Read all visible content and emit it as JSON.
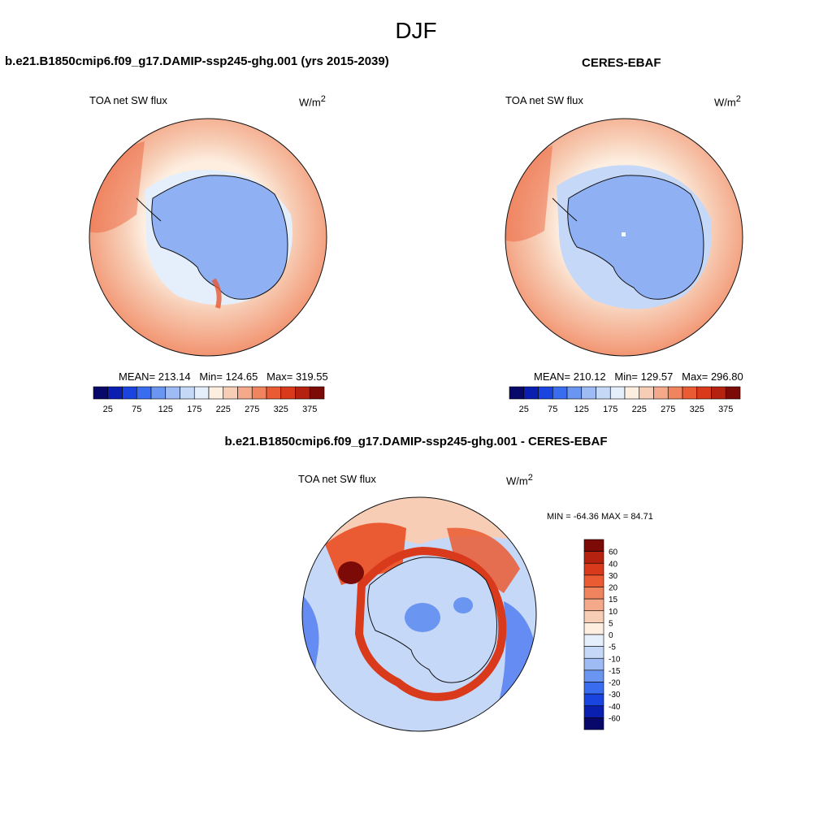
{
  "figure": {
    "title": "DJF"
  },
  "panels": [
    {
      "title": "b.e21.B1850cmip6.f09_g17.DAMIP-ssp245-ghg.001 (yrs 2015-2039)",
      "variable": "TOA net SW flux",
      "units": "W/m",
      "units_sup": "2",
      "stats": {
        "mean_label": "MEAN=",
        "mean": "213.14",
        "min_label": "Min=",
        "min": "124.65",
        "max_label": "Max=",
        "max": "319.55"
      }
    },
    {
      "title": "CERES-EBAF",
      "variable": "TOA net SW flux",
      "units": "W/m",
      "units_sup": "2",
      "stats": {
        "mean_label": "MEAN=",
        "mean": "210.12",
        "min_label": "Min=",
        "min": "129.57",
        "max_label": "Max=",
        "max": "296.80"
      }
    }
  ],
  "diff_panel": {
    "title": "b.e21.B1850cmip6.f09_g17.DAMIP-ssp245-ghg.001 - CERES-EBAF",
    "variable": "TOA net SW flux",
    "units": "W/m",
    "units_sup": "2",
    "minmax": "MIN = -64.36 MAX =  84.71"
  },
  "colorbar_abs": {
    "labels": [
      "25",
      "75",
      "125",
      "175",
      "225",
      "275",
      "325",
      "375"
    ],
    "colors": [
      "#08086b",
      "#0a1fb0",
      "#1a44e0",
      "#3a6cf0",
      "#6a95f0",
      "#9ebbf4",
      "#c6d8f8",
      "#e5eefb",
      "#fdeee0",
      "#f7cdb5",
      "#f4a98a",
      "#f0845e",
      "#ea5a33",
      "#d93a1c",
      "#b52210",
      "#7c0a06"
    ]
  },
  "colorbar_diff": {
    "labels": [
      "60",
      "40",
      "30",
      "20",
      "15",
      "10",
      "5",
      "0",
      "-5",
      "-10",
      "-15",
      "-20",
      "-30",
      "-40",
      "-60"
    ],
    "colors": [
      "#7c0a06",
      "#b52210",
      "#d93a1c",
      "#ea5a33",
      "#f0845e",
      "#f4a98a",
      "#f7cdb5",
      "#fdeee0",
      "#e5eefb",
      "#c6d8f8",
      "#9ebbf4",
      "#6a95f0",
      "#3a6cf0",
      "#1a44e0",
      "#0a1fb0",
      "#08086b"
    ]
  },
  "map_colors": {
    "ocean_far": "#f4a98a",
    "ocean_mid": "#f7cdb5",
    "ocean_near": "#fdeee0",
    "sea_ice": "#c6d8f8",
    "antarctica": "#8fb0f2",
    "diff_warm": "#ea5a33",
    "diff_cool": "#6a95f0",
    "diff_neutral": "#e5eefb"
  }
}
